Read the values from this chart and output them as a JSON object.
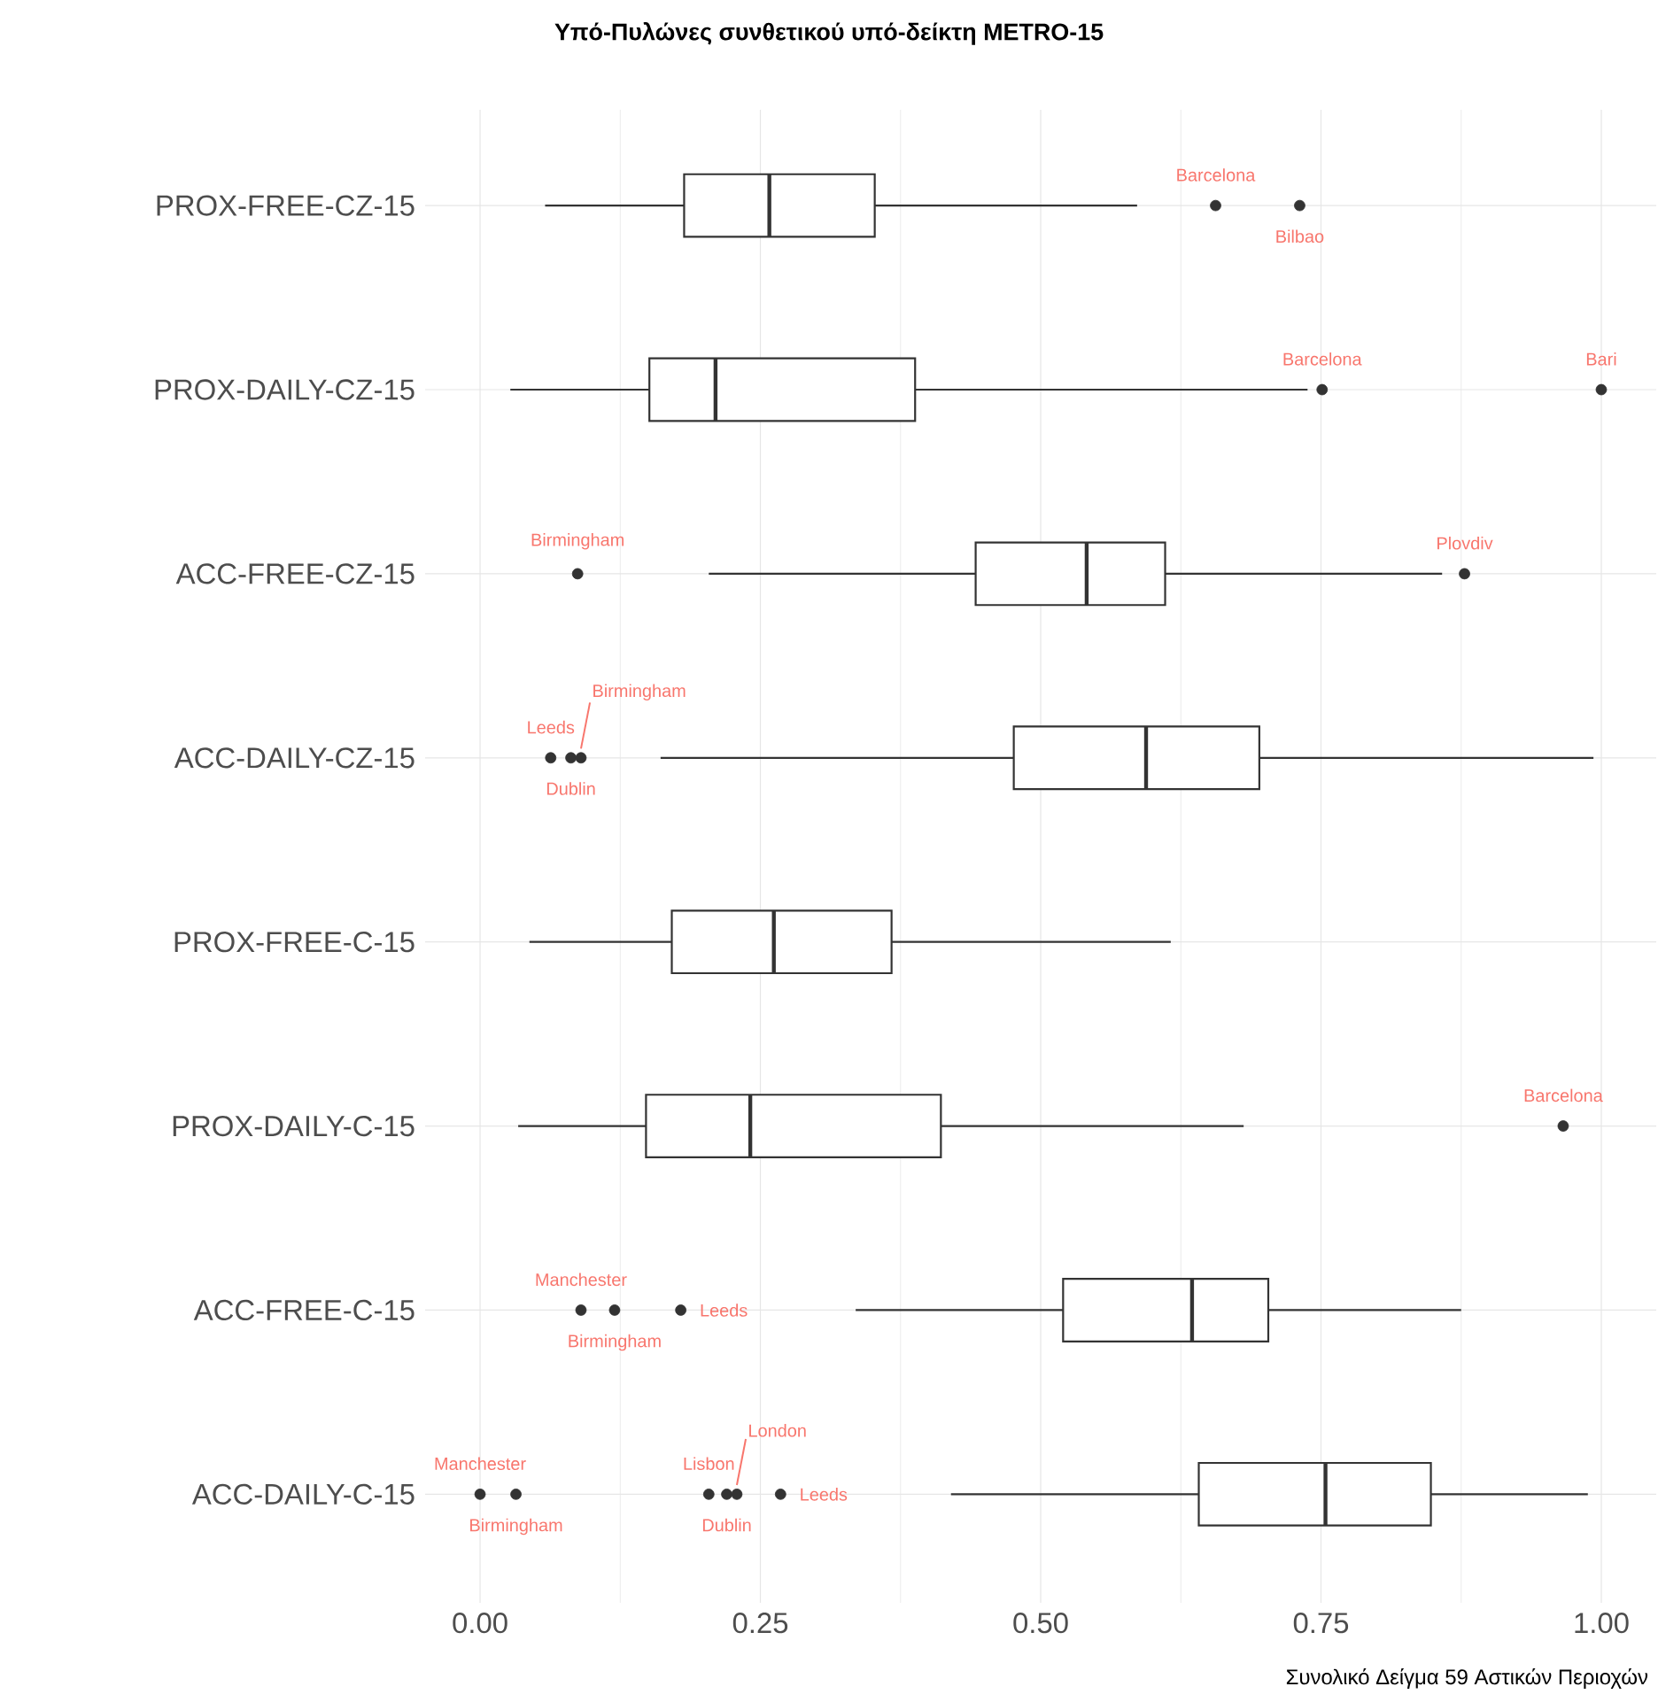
{
  "chart_data": {
    "type": "box",
    "title": "Υπό-Πυλώνες συνθετικού υπό-δείκτη METRO-15",
    "xlabel": "Συνολικό Δείγμα 59 Αστικών Περιοχών",
    "orientation": "horizontal",
    "color": "#333333",
    "grid": true,
    "categories": [
      "PROX-FREE-CZ-15",
      "PROX-DAILY-CZ-15",
      "ACC-FREE-CZ-15",
      "ACC-DAILY-CZ-15",
      "PROX-FREE-C-15",
      "PROX-DAILY-C-15",
      "ACC-FREE-C-15",
      "ACC-DAILY-C-15"
    ],
    "boxes": [
      {
        "low": 0.058,
        "q1": 0.182,
        "median": 0.258,
        "q3": 0.352,
        "high": 0.586,
        "outliers": [
          0.656,
          0.731
        ]
      },
      {
        "low": 0.027,
        "q1": 0.151,
        "median": 0.21,
        "q3": 0.388,
        "high": 0.738,
        "outliers": [
          0.751,
          1.0
        ]
      },
      {
        "low": 0.204,
        "q1": 0.442,
        "median": 0.541,
        "q3": 0.611,
        "high": 0.858,
        "outliers": [
          0.087,
          0.878
        ]
      },
      {
        "low": 0.161,
        "q1": 0.476,
        "median": 0.594,
        "q3": 0.695,
        "high": 0.993,
        "outliers": [
          0.063,
          0.081,
          0.09
        ]
      },
      {
        "low": 0.044,
        "q1": 0.171,
        "median": 0.262,
        "q3": 0.367,
        "high": 0.616
      },
      {
        "low": 0.034,
        "q1": 0.148,
        "median": 0.241,
        "q3": 0.411,
        "high": 0.681,
        "outliers": [
          0.966
        ]
      },
      {
        "low": 0.335,
        "q1": 0.52,
        "median": 0.635,
        "q3": 0.703,
        "high": 0.875,
        "outliers": [
          0.09,
          0.12,
          0.179
        ]
      },
      {
        "low": 0.42,
        "q1": 0.641,
        "median": 0.754,
        "q3": 0.848,
        "high": 0.988,
        "outliers": [
          0.0,
          0.032,
          0.204,
          0.22,
          0.229,
          0.268
        ]
      }
    ],
    "annotations": [
      "Barcelona",
      "Bilbao",
      "Barcelona",
      "Bari",
      "Birmingham",
      "Plovdiv",
      "Leeds",
      "Dublin",
      "Birmingham",
      "Barcelona",
      "Manchester",
      "Birmingham",
      "Leeds",
      "Manchester",
      "Birmingham",
      "Lisbon",
      "Dublin",
      "London",
      "Leeds"
    ],
    "xlim": [
      -0.049,
      1.049
    ],
    "xticks": [
      {
        "value": 0,
        "label": "0.00"
      },
      {
        "value": 0.25,
        "label": "0.25"
      },
      {
        "value": 0.5,
        "label": "0.50"
      },
      {
        "value": 0.75,
        "label": "0.75"
      },
      {
        "value": 1,
        "label": "1.00"
      }
    ]
  }
}
